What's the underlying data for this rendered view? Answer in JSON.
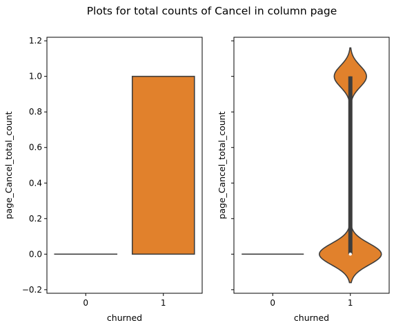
{
  "title": "Plots for total counts of Cancel in column page",
  "colors": {
    "orange": "#e1812c",
    "edge": "#3d3d3d",
    "axis": "#000000"
  },
  "chart_data": [
    {
      "type": "bar",
      "categories": [
        "0",
        "1"
      ],
      "values": [
        0.0,
        1.0
      ],
      "xlabel": "churned",
      "ylabel": "page_Cancel_total_count",
      "ylim": [
        -0.22,
        1.22
      ],
      "yticks": [
        "−0.2",
        "0.0",
        "0.2",
        "0.4",
        "0.6",
        "0.8",
        "1.0",
        "1.2"
      ],
      "grid": false
    },
    {
      "type": "violin",
      "categories": [
        "0",
        "1"
      ],
      "series": [
        {
          "category": "0",
          "values": [
            0.0
          ],
          "min": 0.0,
          "max": 0.0,
          "median": 0.0
        },
        {
          "category": "1",
          "min": 0.0,
          "q1": 0.0,
          "median": 0.0,
          "q3": 1.0,
          "max": 1.0,
          "modes": [
            0.0,
            1.0
          ],
          "kde_range": [
            -0.16,
            1.16
          ]
        }
      ],
      "xlabel": "churned",
      "ylabel": "page_Cancel_total_count",
      "ylim": [
        -0.22,
        1.22
      ],
      "sharey": true,
      "grid": false
    }
  ]
}
